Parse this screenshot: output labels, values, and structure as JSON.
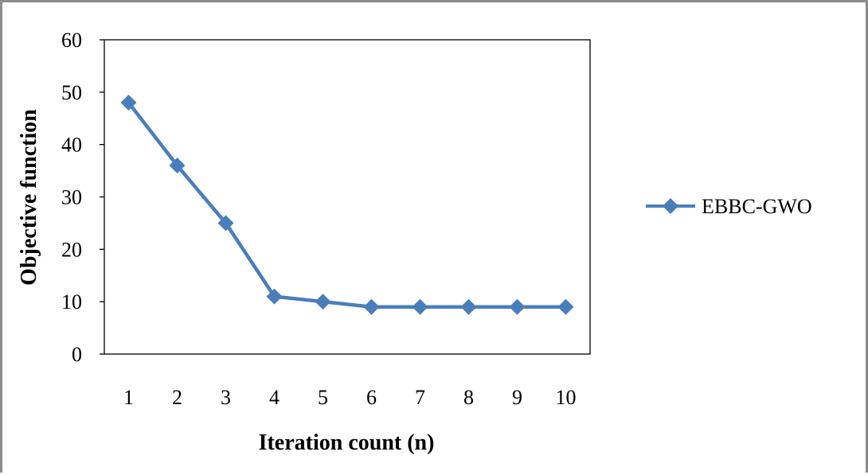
{
  "chart_data": {
    "type": "line",
    "categories": [
      "1",
      "2",
      "3",
      "4",
      "5",
      "6",
      "7",
      "8",
      "9",
      "10"
    ],
    "series": [
      {
        "name": "EBBC-GWO",
        "values": [
          48,
          36,
          25,
          11,
          10,
          9,
          9,
          9,
          9,
          9
        ],
        "color": "#4a7ebb"
      }
    ],
    "xlabel": "Iteration count (n)",
    "ylabel": "Objective function",
    "ylim": [
      0,
      60
    ],
    "yticks": [
      "0",
      "10",
      "20",
      "30",
      "40",
      "50",
      "60"
    ],
    "grid": false,
    "legend_position": "right",
    "marker": "diamond"
  }
}
